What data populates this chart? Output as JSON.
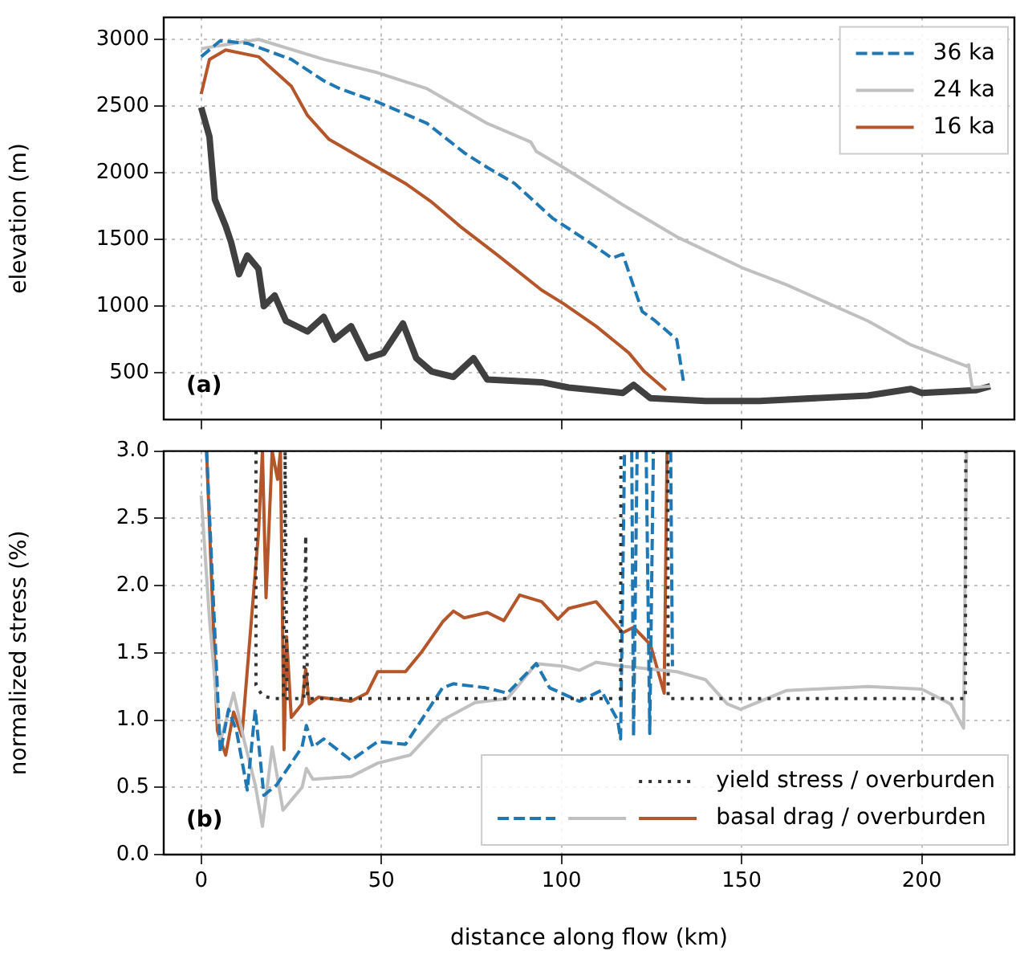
{
  "chart_data": [
    {
      "type": "line",
      "ylabel": "elevation (m)",
      "xlim": [
        -10.4,
        225.7
      ],
      "xticks": [
        0,
        50,
        100,
        150,
        200
      ],
      "ylim": [
        150,
        3165
      ],
      "yticks": [
        500,
        1000,
        1500,
        2000,
        2500,
        3000
      ],
      "grid": true,
      "legend": "top right",
      "tick_labels": "y",
      "marker": "none",
      "annotations": [
        "(a)"
      ],
      "series": [
        {
          "name": "36 ka",
          "color": "#1f77b4",
          "line_style": "dashed",
          "x": [
            0,
            5.3,
            12.8,
            25,
            34,
            38.5,
            49,
            62.7,
            73,
            79.4,
            87,
            97.5,
            106.6,
            114,
            117,
            122.4,
            126,
            132,
            134
          ],
          "values": [
            2870,
            2990,
            2970,
            2850,
            2690,
            2630,
            2530,
            2370,
            2150,
            2040,
            1920,
            1660,
            1500,
            1360,
            1390,
            960,
            890,
            750,
            410
          ]
        },
        {
          "name": "24 ka",
          "color": "#c0c0c0",
          "line_style": "solid",
          "x": [
            0,
            15.9,
            34,
            49,
            62.7,
            79.4,
            91.5,
            93,
            100.5,
            117,
            132,
            150,
            162.5,
            185,
            197,
            212.4,
            213,
            214,
            219
          ],
          "values": [
            2930,
            3000,
            2850,
            2750,
            2630,
            2370,
            2230,
            2160,
            2040,
            1760,
            1520,
            1290,
            1160,
            890,
            710,
            550,
            560,
            390,
            400
          ]
        },
        {
          "name": "16 ka",
          "color": "#b5562a",
          "line_style": "solid",
          "x": [
            0,
            2.3,
            6.8,
            15.9,
            25,
            29.5,
            35.5,
            49,
            56.7,
            64,
            71.8,
            82.4,
            94.5,
            100.5,
            109.6,
            118.7,
            123,
            129
          ],
          "values": [
            2590,
            2850,
            2920,
            2870,
            2650,
            2430,
            2250,
            2040,
            1920,
            1780,
            1600,
            1380,
            1120,
            1020,
            850,
            650,
            510,
            370
          ]
        },
        {
          "color": "#404040",
          "line_style": "solid",
          "x": [
            0,
            2.3,
            3.8,
            6.8,
            8.3,
            10.5,
            12.8,
            15.9,
            17.4,
            20.4,
            23.5,
            29.5,
            34,
            37,
            41.6,
            46,
            50.6,
            56,
            59.7,
            64,
            70,
            75.6,
            79.4,
            94.5,
            102,
            117,
            120,
            124.7,
            140,
            155,
            185,
            197,
            200,
            215,
            219
          ],
          "values": [
            2490,
            2270,
            1800,
            1600,
            1480,
            1240,
            1380,
            1280,
            1000,
            1080,
            890,
            810,
            920,
            750,
            850,
            610,
            650,
            870,
            610,
            510,
            470,
            610,
            450,
            430,
            390,
            350,
            410,
            310,
            290,
            290,
            330,
            380,
            350,
            370,
            400
          ]
        }
      ]
    },
    {
      "type": "line",
      "xlabel": "distance along flow (km)",
      "ylabel": "normalized stress (%)",
      "xlim": [
        -10.4,
        225.7
      ],
      "xticks": [
        0,
        50,
        100,
        150,
        200
      ],
      "ylim": [
        0,
        3
      ],
      "yticks": [
        {
          "value": 0,
          "label": "0.0"
        },
        {
          "value": 0.5,
          "label": "0.5"
        },
        {
          "value": 1,
          "label": "1.0"
        },
        {
          "value": 1.5,
          "label": "1.5"
        },
        {
          "value": 2,
          "label": "2.0"
        },
        {
          "value": 2.5,
          "label": "2.5"
        },
        {
          "value": 3,
          "label": "3.0"
        }
      ],
      "grid": true,
      "legend": "bottom right",
      "marker": "none",
      "annotations": [
        "(b)"
      ],
      "series": [
        {
          "name": "yield stress / overburden",
          "color": "#333333",
          "line_style": "dotted",
          "x": [
            15.2,
            15.2,
            17,
            20,
            22.8,
            23.3,
            23.8,
            28.5,
            29,
            29.5,
            116.4,
            116.5,
            117,
            129.5,
            129.6,
            212.1,
            212.2
          ],
          "values": [
            3,
            1.26,
            1.18,
            1.16,
            1.16,
            3,
            1.16,
            1.16,
            2.37,
            1.16,
            1.16,
            3,
            null,
            3,
            1.16,
            1.16,
            3
          ]
        },
        {
          "color": "#1f77b4",
          "line_style": "dashed",
          "x": [
            1.5,
            5.3,
            7.6,
            9.8,
            12.8,
            15,
            17.4,
            21,
            28,
            29.2,
            31,
            34,
            41.6,
            49,
            56.7,
            67,
            70,
            79,
            85,
            93,
            96.7,
            105,
            111,
            115.6,
            116.4,
            117.5,
            118.5,
            119.5,
            120,
            121,
            122,
            123.5,
            124.5,
            125.5,
            126,
            130.3,
            130.8
          ],
          "values": [
            3,
            0.76,
            1.08,
            0.92,
            0.48,
            1.08,
            0.44,
            0.52,
            0.8,
            0.96,
            0.8,
            0.86,
            0.7,
            0.84,
            0.82,
            1.24,
            1.27,
            1.24,
            1.2,
            1.42,
            1.24,
            1.14,
            1.22,
            1,
            0.86,
            3,
            null,
            3,
            0.88,
            3,
            null,
            3,
            0.9,
            3,
            null,
            3,
            1.4
          ]
        },
        {
          "color": "#c0c0c0",
          "line_style": "solid",
          "x": [
            0,
            2.3,
            5.3,
            9,
            12,
            15,
            17,
            19.7,
            22.7,
            28,
            29.2,
            31,
            41.6,
            49,
            58,
            67,
            76,
            85,
            93,
            100.5,
            105,
            109.6,
            117,
            132,
            140,
            146,
            149.7,
            162.5,
            185,
            200,
            208,
            211.6,
            212.4
          ],
          "values": [
            2.67,
            1.75,
            0.84,
            1.2,
            0.84,
            0.52,
            0.21,
            0.8,
            0.33,
            0.5,
            0.64,
            0.56,
            0.58,
            0.68,
            0.74,
            1,
            1.13,
            1.16,
            1.42,
            1.4,
            1.37,
            1.43,
            1.4,
            1.36,
            1.3,
            1.12,
            1.08,
            1.22,
            1.25,
            1.23,
            1.12,
            0.94,
            3
          ]
        },
        {
          "name": "basal drag / overburden",
          "color": "#b5562a",
          "line_style": "solid",
          "x": [
            1.5,
            4.5,
            6.8,
            9,
            11.3,
            15.9,
            17,
            18,
            19.7,
            21.2,
            22,
            23,
            23.7,
            25,
            28,
            29,
            30,
            32.5,
            41.6,
            46,
            49,
            56.7,
            61,
            67,
            70,
            73,
            79.4,
            84,
            88.4,
            94.5,
            99,
            102,
            109.6,
            117,
            120,
            124.7,
            128.5,
            129.3
          ],
          "values": [
            3,
            0.92,
            0.74,
            1.06,
            0.88,
            2.39,
            3,
            1.91,
            3,
            2.79,
            3,
            0.78,
            1.62,
            1.02,
            1.12,
            1.38,
            1.12,
            1.17,
            1.14,
            1.2,
            1.36,
            1.36,
            1.5,
            1.73,
            1.81,
            1.76,
            1.8,
            1.74,
            1.93,
            1.88,
            1.75,
            1.83,
            1.88,
            1.65,
            1.69,
            1.56,
            1.2,
            3
          ]
        }
      ]
    }
  ]
}
